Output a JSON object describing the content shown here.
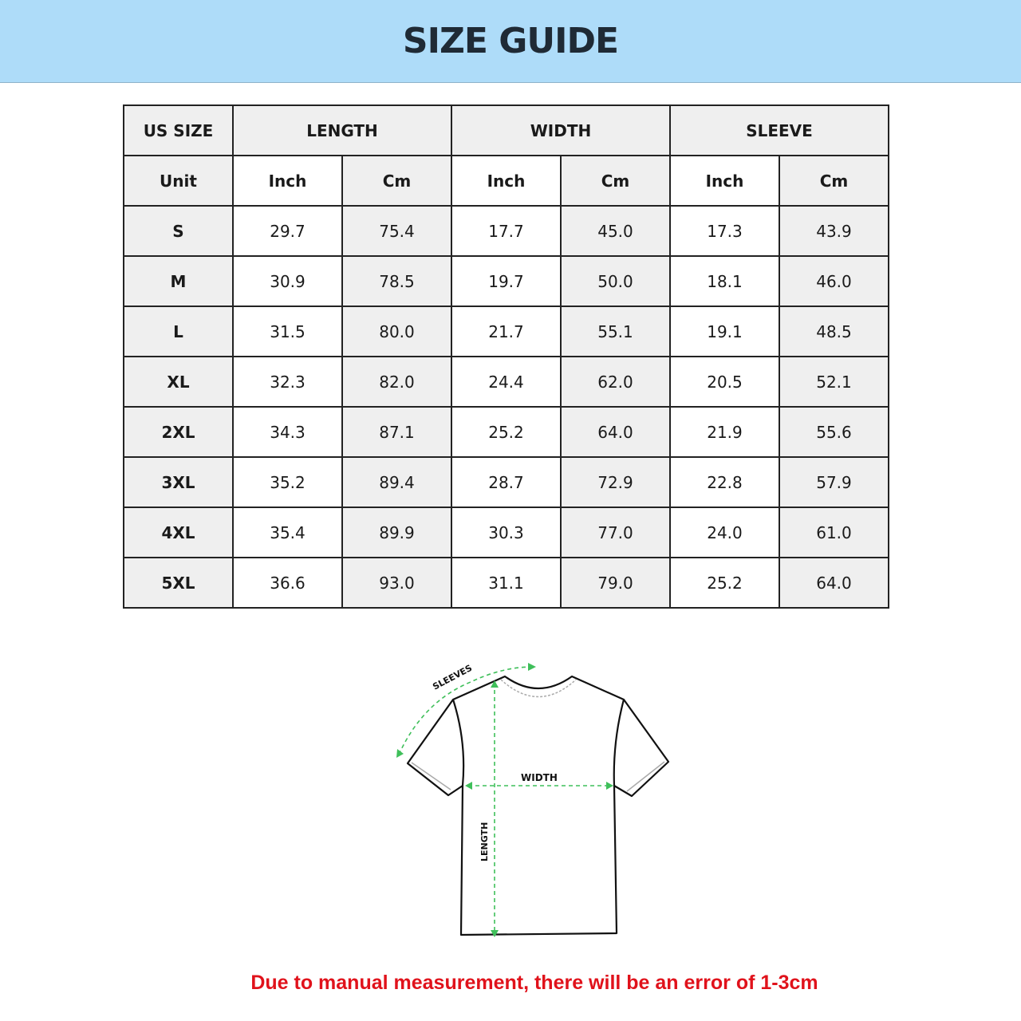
{
  "title": "SIZE GUIDE",
  "table": {
    "group_headers": [
      "US SIZE",
      "LENGTH",
      "WIDTH",
      "SLEEVE"
    ],
    "unit_row": [
      "Unit",
      "Inch",
      "Cm",
      "Inch",
      "Cm",
      "Inch",
      "Cm"
    ],
    "rows": [
      [
        "S",
        "29.7",
        "75.4",
        "17.7",
        "45.0",
        "17.3",
        "43.9"
      ],
      [
        "M",
        "30.9",
        "78.5",
        "19.7",
        "50.0",
        "18.1",
        "46.0"
      ],
      [
        "L",
        "31.5",
        "80.0",
        "21.7",
        "55.1",
        "19.1",
        "48.5"
      ],
      [
        "XL",
        "32.3",
        "82.0",
        "24.4",
        "62.0",
        "20.5",
        "52.1"
      ],
      [
        "2XL",
        "34.3",
        "87.1",
        "25.2",
        "64.0",
        "21.9",
        "55.6"
      ],
      [
        "3XL",
        "35.2",
        "89.4",
        "28.7",
        "72.9",
        "22.8",
        "57.9"
      ],
      [
        "4XL",
        "35.4",
        "89.9",
        "30.3",
        "77.0",
        "24.0",
        "61.0"
      ],
      [
        "5XL",
        "36.6",
        "93.0",
        "31.1",
        "79.0",
        "25.2",
        "64.0"
      ]
    ]
  },
  "diagram": {
    "sleeves_label": "SLEEVES",
    "width_label": "WIDTH",
    "length_label": "LENGTH",
    "arrow_color": "#3fbf5a"
  },
  "note": "Due to manual measurement, there will be an error of 1-3cm",
  "colors": {
    "banner": "#aedcf9",
    "note": "#e0121b"
  }
}
